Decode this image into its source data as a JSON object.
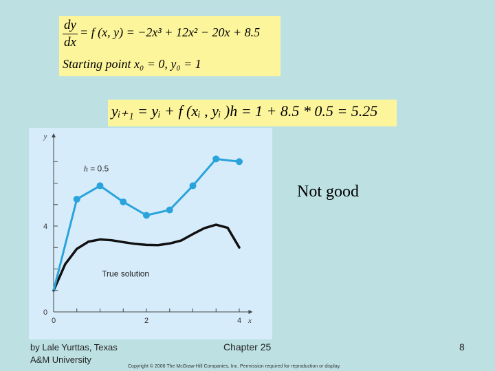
{
  "equation_box": {
    "frac_num": "dy",
    "frac_den": "dx",
    "rhs": "= f (x, y) = −2x³ + 12x² − 20x + 8.5",
    "starting_line": "Starting    point    x₀ = 0,     y₀ = 1"
  },
  "euler_step": {
    "text": "yᵢ₊₁ = yᵢ + f (xᵢ , yᵢ )h = 1 + 8.5 * 0.5 = 5.25"
  },
  "note": "Not good",
  "footer": {
    "author_line1": "by Lale Yurttas, Texas",
    "author_line2": "A&M University",
    "chapter": "Chapter 25",
    "page": "8",
    "copyright": "Copyright © 2006 The McGraw-Hill Companies, Inc. Permission required for reproduction or display."
  },
  "chart_data": {
    "type": "line",
    "xlabel": "x",
    "ylabel": "y",
    "xlim": [
      0,
      4.2
    ],
    "ylim": [
      0,
      8
    ],
    "x_ticks": [
      0,
      2,
      4
    ],
    "y_ticks": [
      0,
      4
    ],
    "series": [
      {
        "name": "h = 0.5",
        "marker": "circle",
        "color": "#29a3dc",
        "x": [
          0,
          0.5,
          1,
          1.5,
          2,
          2.5,
          3,
          3.5,
          4
        ],
        "y": [
          1,
          5.25,
          5.875,
          5.125,
          4.5,
          4.75,
          5.875,
          7.125,
          7
        ]
      },
      {
        "name": "True solution",
        "marker": "none",
        "color": "#111111",
        "x": [
          0,
          0.25,
          0.5,
          0.75,
          1,
          1.25,
          1.5,
          1.75,
          2,
          2.25,
          2.5,
          2.75,
          3,
          3.25,
          3.5,
          3.75,
          4
        ],
        "y": [
          1,
          2.2246,
          2.9375,
          3.2715,
          3.375,
          3.3379,
          3.25,
          3.1699,
          3.125,
          3.1113,
          3.1875,
          3.3262,
          3.625,
          3.9004,
          4.0625,
          3.918,
          3
        ]
      }
    ]
  }
}
